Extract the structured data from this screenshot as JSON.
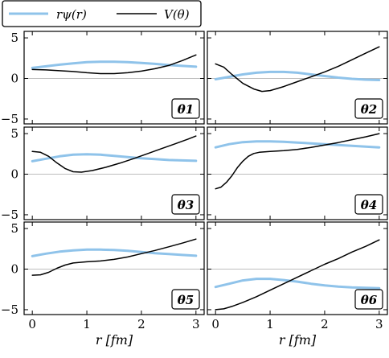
{
  "legend": {
    "items": [
      {
        "label": "rψ(r)",
        "color": "#8fc3ea",
        "kind": "wavefunction"
      },
      {
        "label": "V(θ)",
        "color": "#000000",
        "kind": "potential"
      }
    ]
  },
  "axes_text": {
    "xlabel": "r [fm]",
    "yticks": [
      "5",
      "0",
      "−5"
    ],
    "xticks": [
      "0",
      "1",
      "2",
      "3"
    ]
  },
  "chart_data": {
    "type": "line",
    "grid": false,
    "xlabel": "r [fm]",
    "xlim": [
      -0.15,
      3.15
    ],
    "ylim": [
      -5.6,
      5.8
    ],
    "xticks": [
      0,
      1,
      2,
      3
    ],
    "yticks": [
      5,
      0,
      -5
    ],
    "zero_line_color": "#bdbdbd",
    "series_colors": {
      "wavefunction": "#8fc3ea",
      "potential": "#000000"
    },
    "panels": [
      {
        "label": "θ1",
        "wavefunction": {
          "x": [
            0,
            0.25,
            0.5,
            0.75,
            1.0,
            1.25,
            1.5,
            1.75,
            2.0,
            2.25,
            2.5,
            2.75,
            3.0
          ],
          "y": [
            1.3,
            1.5,
            1.7,
            1.85,
            2.0,
            2.05,
            2.05,
            2.0,
            1.9,
            1.8,
            1.65,
            1.55,
            1.45
          ]
        },
        "potential": {
          "x": [
            0,
            0.25,
            0.5,
            0.75,
            1.0,
            1.25,
            1.5,
            1.75,
            2.0,
            2.25,
            2.5,
            2.75,
            3.0
          ],
          "y": [
            1.1,
            1.05,
            0.95,
            0.85,
            0.7,
            0.6,
            0.6,
            0.7,
            0.9,
            1.2,
            1.6,
            2.2,
            2.9
          ]
        }
      },
      {
        "label": "θ2",
        "wavefunction": {
          "x": [
            0,
            0.25,
            0.5,
            0.75,
            1.0,
            1.25,
            1.5,
            1.75,
            2.0,
            2.25,
            2.5,
            2.75,
            3.0
          ],
          "y": [
            -0.1,
            0.2,
            0.5,
            0.7,
            0.8,
            0.8,
            0.7,
            0.5,
            0.3,
            0.1,
            -0.05,
            -0.15,
            -0.2
          ]
        },
        "potential": {
          "x": [
            0,
            0.15,
            0.3,
            0.5,
            0.7,
            0.85,
            1.0,
            1.25,
            1.5,
            1.75,
            2.0,
            2.25,
            2.5,
            2.75,
            3.0
          ],
          "y": [
            1.8,
            1.4,
            0.5,
            -0.6,
            -1.3,
            -1.6,
            -1.5,
            -1.0,
            -0.4,
            0.2,
            0.8,
            1.5,
            2.3,
            3.1,
            3.9
          ]
        }
      },
      {
        "label": "θ3",
        "wavefunction": {
          "x": [
            0,
            0.25,
            0.5,
            0.75,
            1.0,
            1.25,
            1.5,
            1.75,
            2.0,
            2.25,
            2.5,
            2.75,
            3.0
          ],
          "y": [
            1.6,
            1.9,
            2.2,
            2.4,
            2.45,
            2.4,
            2.25,
            2.1,
            1.95,
            1.85,
            1.75,
            1.7,
            1.65
          ]
        },
        "potential": {
          "x": [
            0,
            0.15,
            0.3,
            0.45,
            0.6,
            0.75,
            0.9,
            1.1,
            1.35,
            1.6,
            1.85,
            2.1,
            2.35,
            2.6,
            2.85,
            3.0
          ],
          "y": [
            2.8,
            2.7,
            2.2,
            1.4,
            0.7,
            0.3,
            0.25,
            0.45,
            0.85,
            1.35,
            1.9,
            2.5,
            3.1,
            3.7,
            4.3,
            4.7
          ]
        }
      },
      {
        "label": "θ4",
        "wavefunction": {
          "x": [
            0,
            0.25,
            0.5,
            0.75,
            1.0,
            1.25,
            1.5,
            1.75,
            2.0,
            2.25,
            2.5,
            2.75,
            3.0
          ],
          "y": [
            3.3,
            3.7,
            3.95,
            4.05,
            4.05,
            4.0,
            3.9,
            3.8,
            3.7,
            3.6,
            3.5,
            3.4,
            3.3
          ]
        },
        "potential": {
          "x": [
            0,
            0.1,
            0.2,
            0.3,
            0.4,
            0.5,
            0.6,
            0.7,
            0.8,
            1.0,
            1.25,
            1.5,
            1.75,
            2.0,
            2.25,
            2.5,
            2.75,
            3.0
          ],
          "y": [
            -1.8,
            -1.6,
            -1.0,
            -0.2,
            0.8,
            1.6,
            2.2,
            2.55,
            2.7,
            2.8,
            2.9,
            3.05,
            3.3,
            3.6,
            3.9,
            4.25,
            4.6,
            5.0
          ]
        }
      },
      {
        "label": "θ5",
        "wavefunction": {
          "x": [
            0,
            0.25,
            0.5,
            0.75,
            1.0,
            1.25,
            1.5,
            1.75,
            2.0,
            2.25,
            2.5,
            2.75,
            3.0
          ],
          "y": [
            1.6,
            1.9,
            2.15,
            2.3,
            2.4,
            2.4,
            2.35,
            2.25,
            2.1,
            1.95,
            1.85,
            1.75,
            1.65
          ]
        },
        "potential": {
          "x": [
            0,
            0.15,
            0.3,
            0.45,
            0.6,
            0.75,
            1.0,
            1.25,
            1.5,
            1.75,
            2.0,
            2.25,
            2.5,
            2.75,
            3.0
          ],
          "y": [
            -0.75,
            -0.7,
            -0.4,
            0.1,
            0.5,
            0.75,
            0.9,
            1.0,
            1.2,
            1.5,
            1.9,
            2.3,
            2.75,
            3.2,
            3.7
          ]
        }
      },
      {
        "label": "θ6",
        "wavefunction": {
          "x": [
            0,
            0.25,
            0.5,
            0.75,
            1.0,
            1.25,
            1.5,
            1.75,
            2.0,
            2.25,
            2.5,
            2.75,
            3.0
          ],
          "y": [
            -2.2,
            -1.8,
            -1.4,
            -1.2,
            -1.2,
            -1.35,
            -1.55,
            -1.8,
            -2.0,
            -2.15,
            -2.25,
            -2.3,
            -2.35
          ]
        },
        "potential": {
          "x": [
            0,
            0.15,
            0.3,
            0.5,
            0.75,
            1.0,
            1.25,
            1.5,
            1.75,
            2.0,
            2.25,
            2.5,
            2.75,
            3.0
          ],
          "y": [
            -5.0,
            -4.9,
            -4.6,
            -4.1,
            -3.4,
            -2.6,
            -1.8,
            -1.0,
            -0.2,
            0.6,
            1.3,
            2.1,
            2.8,
            3.6
          ]
        }
      }
    ]
  }
}
